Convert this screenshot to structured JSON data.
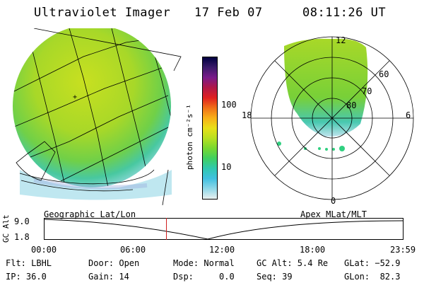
{
  "header": {
    "title": "Ultraviolet Imager",
    "date": "17 Feb 07",
    "time": "08:11:26 UT"
  },
  "colorbar": {
    "label": "photon cm⁻²s⁻¹",
    "ticks": [
      "100",
      "10"
    ],
    "colors": [
      "#000040",
      "#3a1a6a",
      "#7a1a8a",
      "#b01848",
      "#e02020",
      "#f07018",
      "#f8b018",
      "#e8e018",
      "#b8e020",
      "#78d830",
      "#40d060",
      "#30c8b0",
      "#40c0e0",
      "#90d8e8",
      "#e8f0f0"
    ]
  },
  "geo_map": {
    "caption": "Geographic Lat/Lon"
  },
  "polar_map": {
    "caption": "Apex MLat/MLT",
    "lat_labels": [
      "60",
      "70",
      "80"
    ],
    "mlt_labels": {
      "top": "12",
      "bottom": "0",
      "left": "18",
      "right": "6"
    }
  },
  "timeline": {
    "ylabel": "GC Alt",
    "ymax": "9.0",
    "ymin": "1.8",
    "ticks": [
      "00:00",
      "06:00",
      "12:00",
      "18:00",
      "23:59"
    ],
    "marker_time": "08:11:26",
    "marker_color": "#d02020"
  },
  "status": {
    "flt": "Flt: LBHL",
    "ip": "IP: 36.0",
    "door": "Door: Open",
    "gain": "Gain: 14",
    "mode": "Mode: Normal",
    "dsp": "Dsp:     0.0",
    "gcalt": "GC Alt: 5.4 Re",
    "seq": "Seq: 39",
    "glat": "GLat: −52.9",
    "glon": "GLon:  82.3"
  }
}
